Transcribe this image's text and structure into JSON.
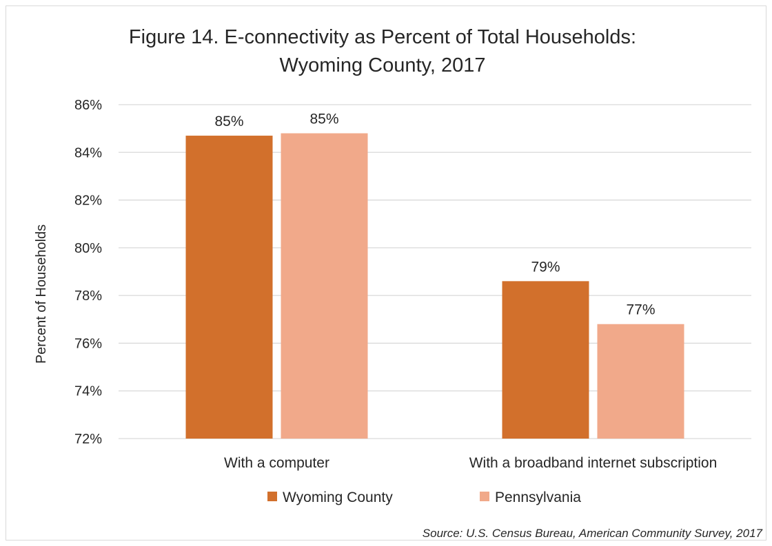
{
  "chart_data": {
    "type": "bar",
    "title_lines": [
      "Figure 14. E-connectivity as Percent of Total Households:",
      "Wyoming County, 2017"
    ],
    "ylabel": "Percent of Households",
    "xlabel": "",
    "categories": [
      "With a computer",
      "With a broadband internet subscription"
    ],
    "series": [
      {
        "name": "Wyoming County",
        "color": "#D2702C",
        "values": [
          84.7,
          78.6
        ],
        "labels": [
          "85%",
          "79%"
        ]
      },
      {
        "name": "Pennsylvania",
        "color": "#F1A98A",
        "values": [
          84.8,
          76.8
        ],
        "labels": [
          "85%",
          "77%"
        ]
      }
    ],
    "ylim": [
      72,
      86
    ],
    "yticks": [
      72,
      74,
      76,
      78,
      80,
      82,
      84,
      86
    ],
    "ytick_suffix": "%",
    "grid": true,
    "legend_position": "bottom",
    "source": "Source: U.S. Census Bureau, American Community Survey, 2017"
  }
}
